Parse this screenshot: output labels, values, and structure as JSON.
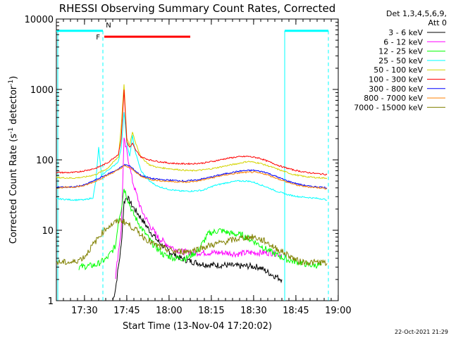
{
  "chart_data": {
    "type": "line",
    "title": "RHESSI Observing Summary Count Rates, Corrected",
    "xlabel": "Start Time (13-Nov-04 17:20:02)",
    "ylabel": "Corrected Count Rate (s",
    "ylabel_sup1": "-1",
    "ylabel_mid": " detector",
    "ylabel_sup2": "-1",
    "ylabel_end": ")",
    "y_scale": "log",
    "ylim": [
      1,
      10000
    ],
    "xlim_minutes": [
      0,
      100
    ],
    "x_ticks": [
      {
        "label": "17:30",
        "minute": 9.97
      },
      {
        "label": "17:45",
        "minute": 24.97
      },
      {
        "label": "18:00",
        "minute": 39.97
      },
      {
        "label": "18:15",
        "minute": 54.97
      },
      {
        "label": "18:30",
        "minute": 69.97
      },
      {
        "label": "18:45",
        "minute": 84.97
      },
      {
        "label": "19:00",
        "minute": 99.97
      }
    ],
    "y_ticks": [
      {
        "label": "1",
        "value": 1
      },
      {
        "label": "10",
        "value": 10
      },
      {
        "label": "100",
        "value": 100
      },
      {
        "label": "1000",
        "value": 1000
      },
      {
        "label": "10000",
        "value": 10000
      }
    ],
    "legend_title_1": "Det 1,3,4,5,6,9,",
    "legend_title_2": "Att 0",
    "series": [
      {
        "name": "3 - 6 keV",
        "color": "#000000",
        "points": [
          [
            20,
            1
          ],
          [
            21,
            1.5
          ],
          [
            22,
            3
          ],
          [
            23,
            6
          ],
          [
            24,
            25
          ],
          [
            25,
            30
          ],
          [
            27,
            22
          ],
          [
            30,
            15
          ],
          [
            33,
            10
          ],
          [
            36,
            7
          ],
          [
            40,
            5
          ],
          [
            44,
            4
          ],
          [
            48,
            3.6
          ],
          [
            52,
            3.3
          ],
          [
            56,
            3.2
          ],
          [
            60,
            3.2
          ],
          [
            64,
            3.1
          ],
          [
            68,
            3.1
          ],
          [
            72,
            3
          ],
          [
            76,
            2.4
          ],
          [
            80,
            2
          ]
        ]
      },
      {
        "name": "6 - 12 keV",
        "color": "#ff00ff",
        "points": [
          [
            21,
            2.2
          ],
          [
            22,
            5
          ],
          [
            23,
            10
          ],
          [
            24,
            190
          ],
          [
            25,
            130
          ],
          [
            27,
            50
          ],
          [
            30,
            20
          ],
          [
            33,
            12
          ],
          [
            36,
            8
          ],
          [
            40,
            6
          ],
          [
            44,
            5
          ],
          [
            48,
            4.8
          ],
          [
            52,
            4.8
          ],
          [
            56,
            4.8
          ],
          [
            60,
            4.8
          ],
          [
            64,
            4.6
          ],
          [
            68,
            4.8
          ],
          [
            72,
            4.8
          ],
          [
            76,
            4.8
          ],
          [
            80,
            4.5
          ]
        ]
      },
      {
        "name": "12 - 25 keV",
        "color": "#00ff00",
        "points": [
          [
            8,
            3
          ],
          [
            14,
            3.2
          ],
          [
            18,
            4
          ],
          [
            21,
            6
          ],
          [
            22,
            14
          ],
          [
            23,
            20
          ],
          [
            24,
            40
          ],
          [
            25,
            30
          ],
          [
            27,
            18
          ],
          [
            30,
            11
          ],
          [
            34,
            6.5
          ],
          [
            38,
            4.5
          ],
          [
            42,
            4
          ],
          [
            46,
            4
          ],
          [
            50,
            5
          ],
          [
            54,
            9
          ],
          [
            58,
            10
          ],
          [
            62,
            9
          ],
          [
            66,
            8.5
          ],
          [
            70,
            7
          ],
          [
            74,
            5.5
          ],
          [
            78,
            4.5
          ],
          [
            82,
            3.8
          ],
          [
            86,
            3.5
          ],
          [
            90,
            3.2
          ],
          [
            94,
            3.2
          ]
        ]
      },
      {
        "name": "25 - 50 keV",
        "color": "#00ffff",
        "points": [
          [
            0,
            28
          ],
          [
            6,
            27
          ],
          [
            10,
            27
          ],
          [
            13,
            29
          ],
          [
            14,
            50
          ],
          [
            15,
            150
          ],
          [
            16,
            60
          ],
          [
            18,
            70
          ],
          [
            20,
            80
          ],
          [
            22,
            95
          ],
          [
            23,
            150
          ],
          [
            24,
            480
          ],
          [
            25,
            170
          ],
          [
            26,
            110
          ],
          [
            27,
            220
          ],
          [
            28,
            130
          ],
          [
            30,
            70
          ],
          [
            33,
            50
          ],
          [
            36,
            42
          ],
          [
            40,
            38
          ],
          [
            44,
            36
          ],
          [
            48,
            36
          ],
          [
            52,
            37
          ],
          [
            56,
            43
          ],
          [
            60,
            47
          ],
          [
            64,
            50
          ],
          [
            68,
            50
          ],
          [
            70,
            48
          ],
          [
            74,
            42
          ],
          [
            78,
            36
          ],
          [
            82,
            32
          ],
          [
            86,
            30
          ],
          [
            90,
            29
          ],
          [
            94,
            28
          ],
          [
            96,
            27
          ]
        ]
      },
      {
        "name": "50 - 100 keV",
        "color": "#d4d400",
        "points": [
          [
            0,
            56
          ],
          [
            6,
            55
          ],
          [
            10,
            57
          ],
          [
            14,
            62
          ],
          [
            18,
            75
          ],
          [
            22,
            110
          ],
          [
            23,
            300
          ],
          [
            24,
            1200
          ],
          [
            25,
            200
          ],
          [
            26,
            160
          ],
          [
            27,
            250
          ],
          [
            28,
            180
          ],
          [
            30,
            110
          ],
          [
            33,
            85
          ],
          [
            36,
            78
          ],
          [
            40,
            75
          ],
          [
            44,
            72
          ],
          [
            48,
            70
          ],
          [
            52,
            72
          ],
          [
            56,
            76
          ],
          [
            60,
            82
          ],
          [
            64,
            88
          ],
          [
            68,
            95
          ],
          [
            72,
            90
          ],
          [
            76,
            80
          ],
          [
            80,
            70
          ],
          [
            84,
            62
          ],
          [
            88,
            58
          ],
          [
            92,
            56
          ],
          [
            96,
            55
          ]
        ]
      },
      {
        "name": "100 - 300 keV",
        "color": "#ff0000",
        "points": [
          [
            0,
            66
          ],
          [
            6,
            66
          ],
          [
            10,
            70
          ],
          [
            14,
            76
          ],
          [
            18,
            90
          ],
          [
            22,
            120
          ],
          [
            23,
            200
          ],
          [
            24,
            1000
          ],
          [
            25,
            180
          ],
          [
            26,
            150
          ],
          [
            27,
            170
          ],
          [
            28,
            140
          ],
          [
            30,
            110
          ],
          [
            33,
            100
          ],
          [
            36,
            95
          ],
          [
            40,
            90
          ],
          [
            44,
            88
          ],
          [
            48,
            88
          ],
          [
            52,
            90
          ],
          [
            56,
            96
          ],
          [
            60,
            104
          ],
          [
            64,
            110
          ],
          [
            68,
            112
          ],
          [
            72,
            106
          ],
          [
            76,
            92
          ],
          [
            80,
            80
          ],
          [
            84,
            72
          ],
          [
            88,
            67
          ],
          [
            92,
            64
          ],
          [
            96,
            62
          ]
        ]
      },
      {
        "name": "300 - 800 keV",
        "color": "#0000ff",
        "points": [
          [
            0,
            41
          ],
          [
            6,
            41
          ],
          [
            10,
            44
          ],
          [
            14,
            52
          ],
          [
            18,
            62
          ],
          [
            22,
            74
          ],
          [
            24,
            85
          ],
          [
            26,
            82
          ],
          [
            28,
            70
          ],
          [
            30,
            60
          ],
          [
            34,
            54
          ],
          [
            38,
            52
          ],
          [
            42,
            51
          ],
          [
            46,
            50
          ],
          [
            50,
            52
          ],
          [
            54,
            56
          ],
          [
            58,
            61
          ],
          [
            62,
            66
          ],
          [
            66,
            70
          ],
          [
            70,
            71
          ],
          [
            74,
            67
          ],
          [
            78,
            58
          ],
          [
            82,
            50
          ],
          [
            86,
            45
          ],
          [
            90,
            42
          ],
          [
            94,
            41
          ],
          [
            96,
            40
          ]
        ]
      },
      {
        "name": "800 - 7000 keV",
        "color": "#ff8000",
        "points": [
          [
            0,
            40
          ],
          [
            6,
            41
          ],
          [
            10,
            43
          ],
          [
            14,
            50
          ],
          [
            18,
            60
          ],
          [
            22,
            72
          ],
          [
            24,
            82
          ],
          [
            26,
            78
          ],
          [
            28,
            68
          ],
          [
            30,
            58
          ],
          [
            34,
            52
          ],
          [
            38,
            50
          ],
          [
            42,
            49
          ],
          [
            46,
            48
          ],
          [
            50,
            50
          ],
          [
            54,
            54
          ],
          [
            58,
            59
          ],
          [
            62,
            63
          ],
          [
            66,
            66
          ],
          [
            70,
            67
          ],
          [
            74,
            63
          ],
          [
            78,
            55
          ],
          [
            82,
            48
          ],
          [
            86,
            43
          ],
          [
            90,
            41
          ],
          [
            94,
            40
          ],
          [
            96,
            39
          ]
        ]
      },
      {
        "name": "7000 - 15000 keV",
        "color": "#808000",
        "points": [
          [
            0,
            3.5
          ],
          [
            6,
            3.5
          ],
          [
            10,
            4.2
          ],
          [
            12,
            5.5
          ],
          [
            14,
            7
          ],
          [
            16,
            9
          ],
          [
            18,
            11
          ],
          [
            21,
            13
          ],
          [
            23,
            14
          ],
          [
            25,
            12.5
          ],
          [
            27,
            11
          ],
          [
            29,
            9.5
          ],
          [
            31,
            8
          ],
          [
            34,
            6.5
          ],
          [
            38,
            5.5
          ],
          [
            42,
            5
          ],
          [
            46,
            5
          ],
          [
            50,
            5.4
          ],
          [
            54,
            6
          ],
          [
            58,
            6.6
          ],
          [
            62,
            7.2
          ],
          [
            66,
            7.8
          ],
          [
            70,
            8
          ],
          [
            74,
            7
          ],
          [
            78,
            5.5
          ],
          [
            82,
            4.5
          ],
          [
            86,
            3.6
          ],
          [
            90,
            3.5
          ],
          [
            94,
            3.5
          ],
          [
            96,
            3.4
          ]
        ]
      }
    ],
    "attenuator_flags": {
      "F_label": "F",
      "N_label": "N"
    }
  },
  "footer": {
    "timestamp": "22-Oct-2021 21:29"
  }
}
